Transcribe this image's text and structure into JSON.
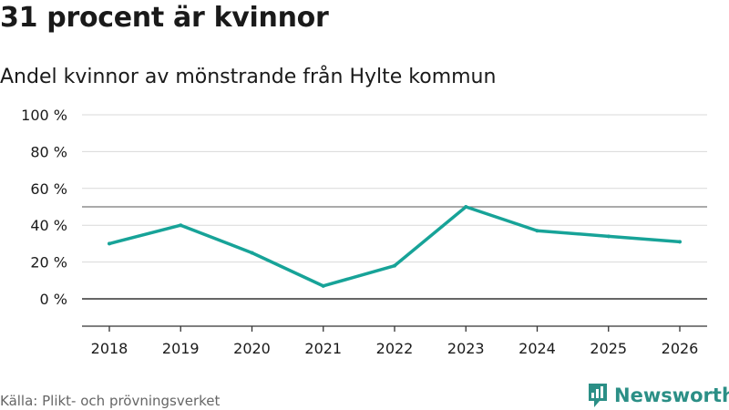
{
  "title": "31 procent är kvinnor",
  "subtitle": "Andel kvinnor av mönstrande från Hylte kommun",
  "source": "Källa: Plikt- och prövningsverket",
  "brand": "Newsworthy",
  "colors": {
    "line": "#17a398",
    "brand": "#2b8f86",
    "grid": "#d9d9d9",
    "axis": "#333333",
    "ref": "#777777"
  },
  "chart_data": {
    "type": "line",
    "title": "31 procent är kvinnor",
    "subtitle": "Andel kvinnor av mönstrande från Hylte kommun",
    "xlabel": "",
    "ylabel": "",
    "categories": [
      "2018",
      "2019",
      "2020",
      "2021",
      "2022",
      "2023",
      "2024",
      "2025",
      "2026"
    ],
    "series": [
      {
        "name": "Andel kvinnor",
        "values": [
          30,
          40,
          25,
          7,
          18,
          50,
          37,
          34,
          31
        ]
      }
    ],
    "ylim": [
      0,
      100
    ],
    "y_ticks": [
      0,
      20,
      40,
      60,
      80,
      100
    ],
    "y_tick_labels": [
      "0 %",
      "20 %",
      "40 %",
      "60 %",
      "80 %",
      "100 %"
    ],
    "reference_line": 50,
    "grid": true
  }
}
